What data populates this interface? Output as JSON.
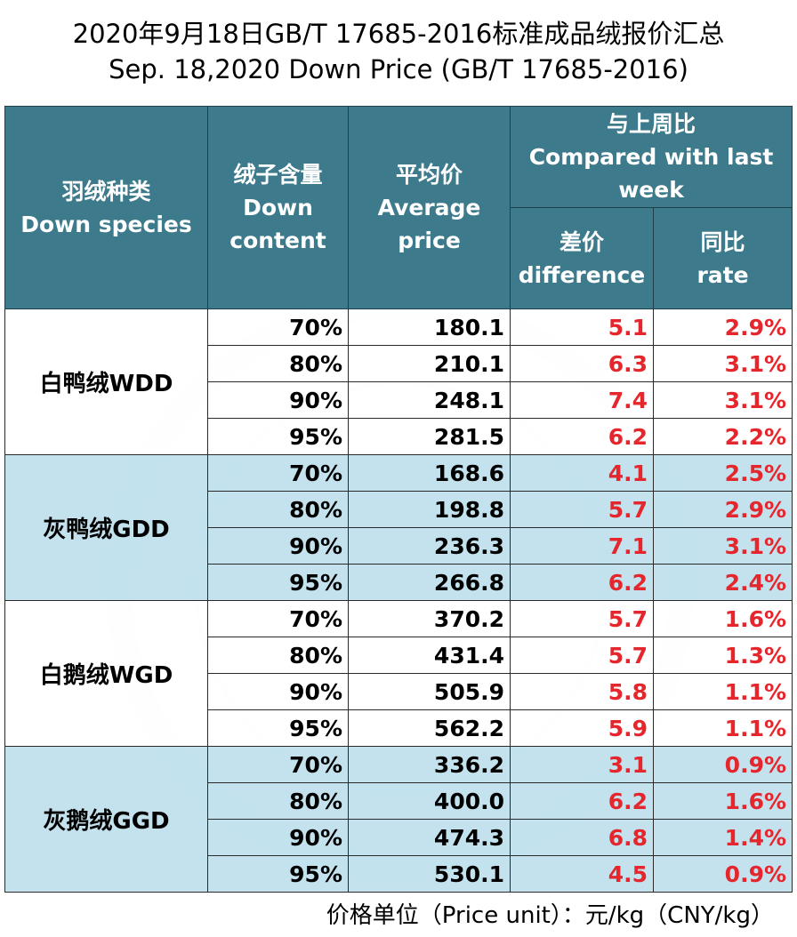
{
  "title": {
    "line1": "2020年9月18日GB/T 17685-2016标准成品绒报价汇总",
    "line2": "Sep. 18,2020 Down Price (GB/T 17685-2016)"
  },
  "headers": {
    "species": [
      "羽绒种类",
      "Down species"
    ],
    "content": [
      "绒子含量",
      "Down",
      "content"
    ],
    "average": [
      "平均价",
      "Average",
      "price"
    ],
    "compared": [
      "与上周比",
      "Compared with last",
      "week"
    ],
    "difference": [
      "差价",
      "difference"
    ],
    "rate": [
      "同比",
      "rate"
    ]
  },
  "groups": [
    {
      "species": "白鸭绒WDD",
      "rows": [
        {
          "content": "70%",
          "price": "180.1",
          "diff": "5.1",
          "rate": "2.9%"
        },
        {
          "content": "80%",
          "price": "210.1",
          "diff": "6.3",
          "rate": "3.1%"
        },
        {
          "content": "90%",
          "price": "248.1",
          "diff": "7.4",
          "rate": "3.1%"
        },
        {
          "content": "95%",
          "price": "281.5",
          "diff": "6.2",
          "rate": "2.2%"
        }
      ]
    },
    {
      "species": "灰鸭绒GDD",
      "rows": [
        {
          "content": "70%",
          "price": "168.6",
          "diff": "4.1",
          "rate": "2.5%"
        },
        {
          "content": "80%",
          "price": "198.8",
          "diff": "5.7",
          "rate": "2.9%"
        },
        {
          "content": "90%",
          "price": "236.3",
          "diff": "7.1",
          "rate": "3.1%"
        },
        {
          "content": "95%",
          "price": "266.8",
          "diff": "6.2",
          "rate": "2.4%"
        }
      ]
    },
    {
      "species": "白鹅绒WGD",
      "rows": [
        {
          "content": "70%",
          "price": "370.2",
          "diff": "5.7",
          "rate": "1.6%"
        },
        {
          "content": "80%",
          "price": "431.4",
          "diff": "5.7",
          "rate": "1.3%"
        },
        {
          "content": "90%",
          "price": "505.9",
          "diff": "5.8",
          "rate": "1.1%"
        },
        {
          "content": "95%",
          "price": "562.2",
          "diff": "5.9",
          "rate": "1.1%"
        }
      ]
    },
    {
      "species": "灰鹅绒GGD",
      "rows": [
        {
          "content": "70%",
          "price": "336.2",
          "diff": "3.1",
          "rate": "0.9%"
        },
        {
          "content": "80%",
          "price": "400.0",
          "diff": "6.2",
          "rate": "1.6%"
        },
        {
          "content": "90%",
          "price": "474.3",
          "diff": "6.8",
          "rate": "1.4%"
        },
        {
          "content": "95%",
          "price": "530.1",
          "diff": "4.5",
          "rate": "0.9%"
        }
      ]
    }
  ],
  "footer": "价格单位（Price unit）：元/kg（CNY/kg）",
  "colors": {
    "header_bg": "#3d7b8c",
    "header_text": "#ffffff",
    "band_white": "#ffffff",
    "band_blue": "#bee0ec",
    "change_text": "#e5262c"
  }
}
